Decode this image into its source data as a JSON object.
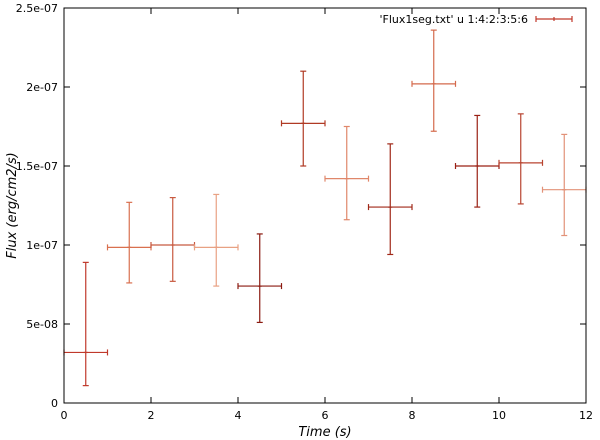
{
  "chart_data": {
    "type": "scatter",
    "xlabel": "Time (s)",
    "ylabel": "Flux (erg/cm2/s)",
    "xlim": [
      0,
      12
    ],
    "ylim": [
      0,
      2.5e-07
    ],
    "xticks": [
      0,
      2,
      4,
      6,
      8,
      10,
      12
    ],
    "xtick_labels": [
      "0",
      "2",
      "4",
      "6",
      "8",
      "10",
      "12"
    ],
    "yticks": [
      0,
      5e-08,
      1e-07,
      1.5e-07,
      2e-07,
      2.5e-07
    ],
    "ytick_labels": [
      "0",
      "5e-08",
      "1e-07",
      "1.5e-07",
      "2e-07",
      "2.5e-07"
    ],
    "grid": false,
    "legend": {
      "position": "top-right",
      "label": "'Flux1seg.txt' u 1:4:2:3:5:6"
    },
    "series": [
      {
        "name": "'Flux1seg.txt' u 1:4:2:3:5:6",
        "points": [
          {
            "x": 0.5,
            "y": 3.2e-08,
            "xlow": 0,
            "xhigh": 1,
            "ylow": 1.1e-08,
            "yhigh": 8.9e-08,
            "color": "#c0392b"
          },
          {
            "x": 1.5,
            "y": 9.85e-08,
            "xlow": 1,
            "xhigh": 2,
            "ylow": 7.6e-08,
            "yhigh": 1.27e-07,
            "color": "#d9704f"
          },
          {
            "x": 2.5,
            "y": 1e-07,
            "xlow": 2,
            "xhigh": 3,
            "ylow": 7.7e-08,
            "yhigh": 1.3e-07,
            "color": "#c85a40"
          },
          {
            "x": 3.5,
            "y": 9.85e-08,
            "xlow": 3,
            "xhigh": 4,
            "ylow": 7.4e-08,
            "yhigh": 1.32e-07,
            "color": "#e8a183"
          },
          {
            "x": 4.5,
            "y": 7.4e-08,
            "xlow": 4,
            "xhigh": 5,
            "ylow": 5.1e-08,
            "yhigh": 1.07e-07,
            "color": "#8b1a10"
          },
          {
            "x": 5.5,
            "y": 1.77e-07,
            "xlow": 5,
            "xhigh": 6,
            "ylow": 1.5e-07,
            "yhigh": 2.1e-07,
            "color": "#b03a24"
          },
          {
            "x": 6.5,
            "y": 1.42e-07,
            "xlow": 6,
            "xhigh": 7,
            "ylow": 1.16e-07,
            "yhigh": 1.75e-07,
            "color": "#e0876a"
          },
          {
            "x": 7.5,
            "y": 1.24e-07,
            "xlow": 7,
            "xhigh": 8,
            "ylow": 9.4e-08,
            "yhigh": 1.64e-07,
            "color": "#a02818"
          },
          {
            "x": 8.5,
            "y": 2.02e-07,
            "xlow": 8,
            "xhigh": 9,
            "ylow": 1.72e-07,
            "yhigh": 2.36e-07,
            "color": "#d46a4c"
          },
          {
            "x": 9.5,
            "y": 1.5e-07,
            "xlow": 9,
            "xhigh": 10,
            "ylow": 1.24e-07,
            "yhigh": 1.82e-07,
            "color": "#9a2014"
          },
          {
            "x": 10.5,
            "y": 1.52e-07,
            "xlow": 10,
            "xhigh": 11,
            "ylow": 1.26e-07,
            "yhigh": 1.83e-07,
            "color": "#b84430"
          },
          {
            "x": 11.5,
            "y": 1.35e-07,
            "xlow": 11,
            "xhigh": 12,
            "ylow": 1.06e-07,
            "yhigh": 1.7e-07,
            "color": "#e29278"
          }
        ]
      }
    ],
    "legend_color": "#c0392b",
    "frame_color": "#000000"
  }
}
